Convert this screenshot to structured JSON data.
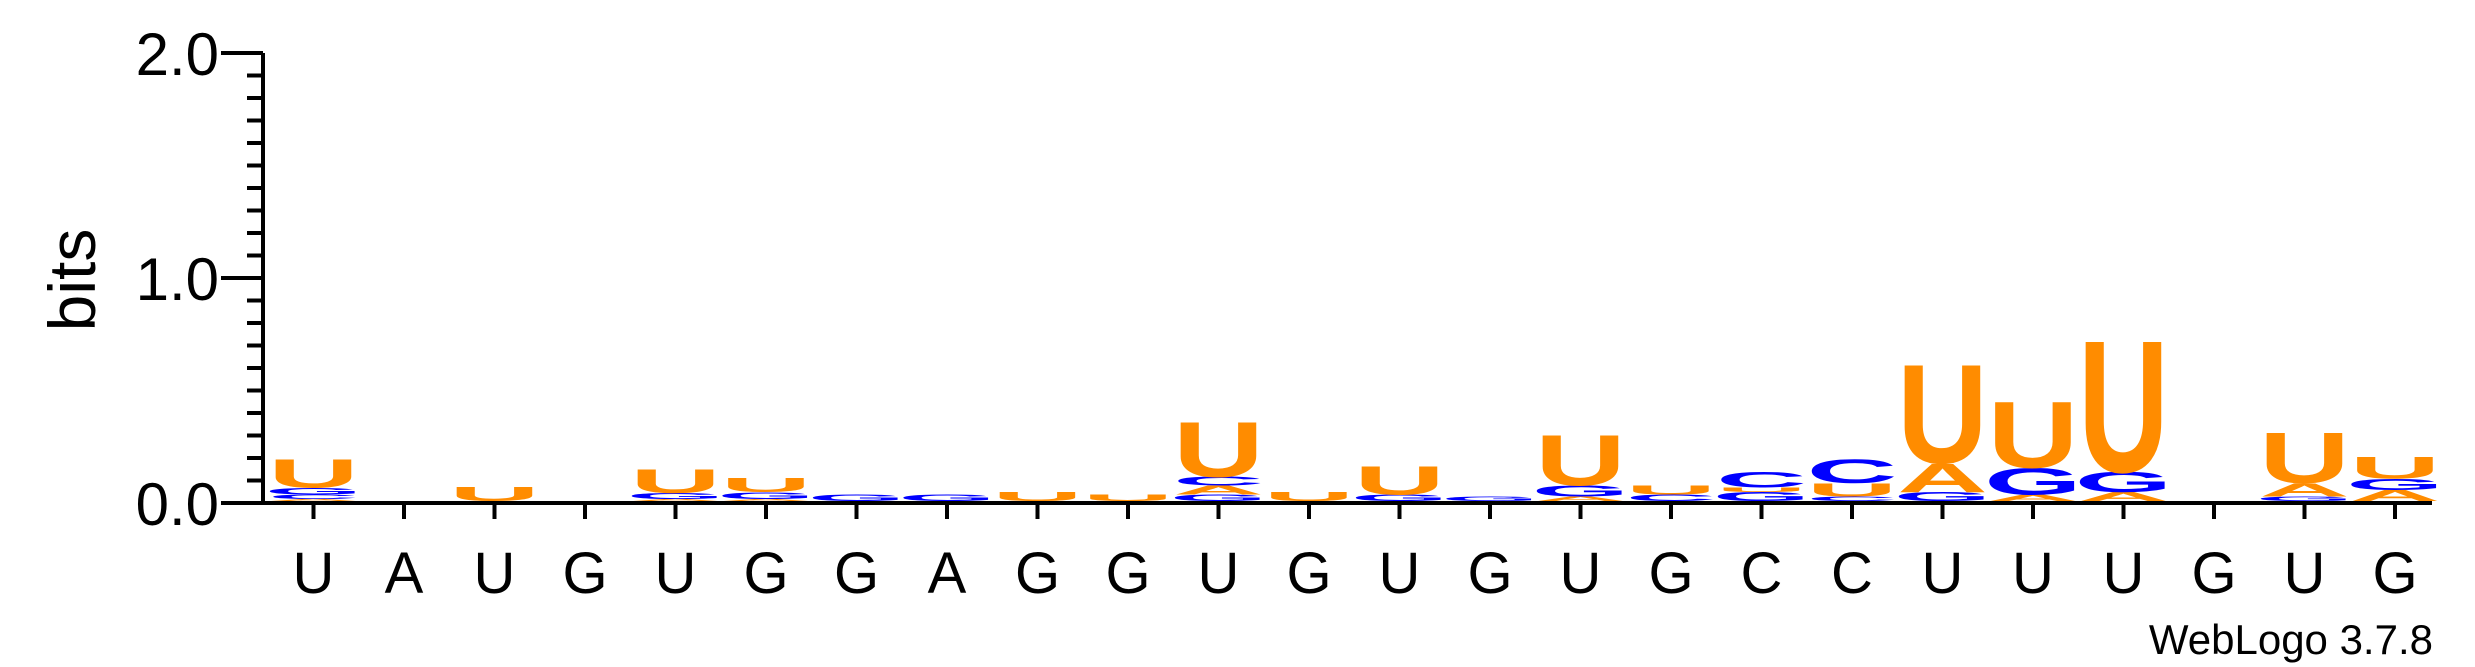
{
  "chart_data": {
    "type": "sequence-logo",
    "ylabel": "bits",
    "ylim": [
      0,
      2.0
    ],
    "yticks": [
      {
        "value": 0.0,
        "label": "0.0"
      },
      {
        "value": 1.0,
        "label": "1.0"
      },
      {
        "value": 2.0,
        "label": "2.0"
      }
    ],
    "xlabels": [
      "U",
      "A",
      "U",
      "G",
      "U",
      "G",
      "G",
      "A",
      "G",
      "G",
      "U",
      "G",
      "U",
      "G",
      "U",
      "G",
      "C",
      "C",
      "U",
      "U",
      "U",
      "G",
      "U",
      "G"
    ],
    "credit": "WebLogo 3.7.8",
    "colors": {
      "U": "#ff8c00",
      "A": "#ff8c00",
      "G": "#0000ff",
      "C": "#0000ff",
      "axis": "#000000"
    },
    "positions": [
      [
        [
          "A",
          0.01
        ],
        [
          "C",
          0.02
        ],
        [
          "G",
          0.03
        ],
        [
          "U",
          0.13
        ]
      ],
      [],
      [
        [
          "U",
          0.065
        ]
      ],
      [],
      [
        [
          "A",
          0.01
        ],
        [
          "G",
          0.025
        ],
        [
          "U",
          0.11
        ]
      ],
      [
        [
          "A",
          0.01
        ],
        [
          "G",
          0.03
        ],
        [
          "U",
          0.065
        ]
      ],
      [
        [
          "G",
          0.03
        ]
      ],
      [
        [
          "G",
          0.03
        ]
      ],
      [
        [
          "U",
          0.04
        ]
      ],
      [
        [
          "U",
          0.03
        ]
      ],
      [
        [
          "G",
          0.03
        ],
        [
          "A",
          0.04
        ],
        [
          "C",
          0.04
        ],
        [
          "U",
          0.25
        ]
      ],
      [
        [
          "U",
          0.04
        ]
      ],
      [
        [
          "G",
          0.03
        ],
        [
          "U",
          0.13
        ]
      ],
      [
        [
          "G",
          0.02
        ]
      ],
      [
        [
          "A",
          0.02
        ],
        [
          "G",
          0.05
        ],
        [
          "U",
          0.23
        ]
      ],
      [
        [
          "C",
          0.03
        ],
        [
          "U",
          0.04
        ]
      ],
      [
        [
          "G",
          0.04
        ],
        [
          "U",
          0.02
        ],
        [
          "C",
          0.07
        ]
      ],
      [
        [
          "C",
          0.02
        ],
        [
          "U",
          0.06
        ],
        [
          "C",
          0.11
        ]
      ],
      [
        [
          "G",
          0.04
        ],
        [
          "A",
          0.13
        ],
        [
          "U",
          0.45
        ]
      ],
      [
        [
          "A",
          0.03
        ],
        [
          "G",
          0.12
        ],
        [
          "U",
          0.3
        ]
      ],
      [
        [
          "A",
          0.04
        ],
        [
          "G",
          0.09
        ],
        [
          "U",
          0.6
        ]
      ],
      [],
      [
        [
          "G",
          0.02
        ],
        [
          "A",
          0.06
        ],
        [
          "U",
          0.23
        ]
      ],
      [
        [
          "A",
          0.05
        ],
        [
          "G",
          0.05
        ],
        [
          "U",
          0.1
        ]
      ]
    ]
  }
}
